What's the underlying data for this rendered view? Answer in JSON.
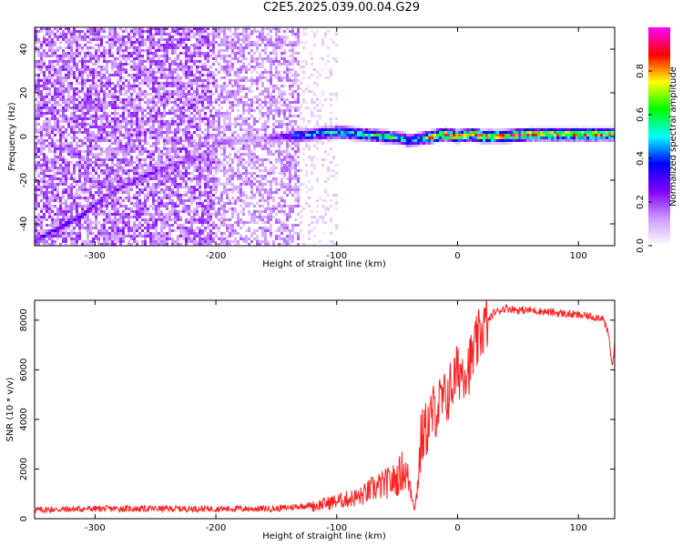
{
  "title": "C2E5.2025.039.00.04.G29",
  "chart_data": [
    {
      "type": "heatmap",
      "title": "",
      "xlabel": "Height of straight line (km)",
      "ylabel": "Frequency (Hz)",
      "xlim": [
        -350,
        130
      ],
      "ylim": [
        -50,
        50
      ],
      "xticks": [
        -300,
        -200,
        -100,
        0,
        100
      ],
      "yticks": [
        -40,
        -20,
        0,
        20,
        40
      ],
      "colorbar": {
        "label": "Normalized spectral amplitude",
        "range": [
          0,
          1
        ],
        "ticks": [
          0.0,
          0.2,
          0.4,
          0.6,
          0.8
        ],
        "colors": [
          "#ffffff",
          "#cc99ff",
          "#7f00ff",
          "#0000ff",
          "#00ffff",
          "#00ff00",
          "#ffff00",
          "#ff0000",
          "#ff00ff"
        ]
      },
      "ridge": {
        "x": [
          -350,
          -330,
          -310,
          -290,
          -270,
          -250,
          -230,
          -215,
          -205,
          -200,
          -180,
          -160,
          -140,
          -120,
          -100,
          -80,
          -60,
          -45,
          -40,
          -30,
          -20,
          -10,
          0,
          10,
          20,
          40,
          60,
          80,
          100,
          120,
          130
        ],
        "y": [
          -48,
          -42,
          -36,
          -27,
          -21,
          -16,
          -12,
          -10,
          -8,
          -3,
          -2,
          -1,
          0,
          1,
          2,
          1,
          0,
          -1,
          -2,
          -1,
          0,
          1,
          0,
          1,
          0,
          0,
          1,
          1,
          1,
          1,
          1
        ],
        "amplitude": [
          0.3,
          0.3,
          0.3,
          0.25,
          0.25,
          0.25,
          0.2,
          0.2,
          0.2,
          0.2,
          0.15,
          0.15,
          0.4,
          0.5,
          0.55,
          0.6,
          0.6,
          0.55,
          0.5,
          0.6,
          0.8,
          0.85,
          0.9,
          0.9,
          0.9,
          0.85,
          0.85,
          0.8,
          0.8,
          0.8,
          0.8
        ]
      }
    },
    {
      "type": "line",
      "title": "",
      "xlabel": "Height of straight line (km)",
      "ylabel": "SNR (10 * v/v)",
      "xlim": [
        -350,
        130
      ],
      "ylim": [
        0,
        8800
      ],
      "xticks": [
        -300,
        -200,
        -100,
        0,
        100
      ],
      "yticks": [
        0,
        2000,
        4000,
        6000,
        8000
      ],
      "series": [
        {
          "color": "#ff2020",
          "x": [
            -350,
            -300,
            -250,
            -200,
            -150,
            -120,
            -100,
            -80,
            -70,
            -60,
            -50,
            -45,
            -40,
            -35,
            -30,
            -25,
            -20,
            -15,
            -10,
            0,
            10,
            20,
            30,
            40,
            50,
            60,
            80,
            100,
            120,
            125,
            128,
            130
          ],
          "y": [
            300,
            350,
            350,
            350,
            350,
            500,
            700,
            900,
            1200,
            1400,
            1600,
            2000,
            1500,
            400,
            3200,
            3700,
            4300,
            4600,
            4800,
            5900,
            6200,
            7600,
            8300,
            8500,
            8400,
            8400,
            8300,
            8200,
            8100,
            7400,
            6100,
            7000
          ]
        }
      ]
    }
  ]
}
